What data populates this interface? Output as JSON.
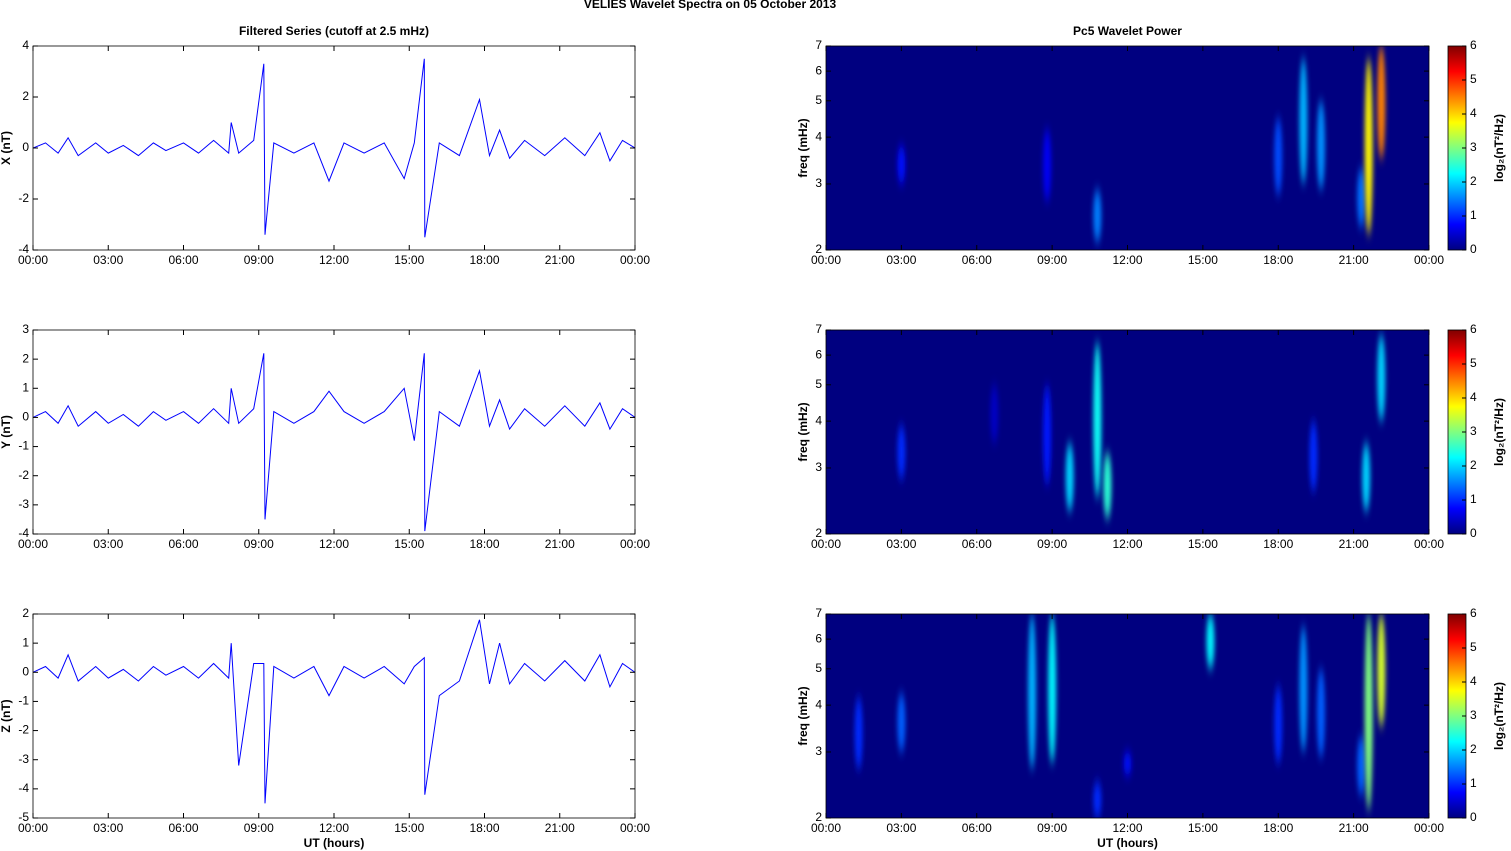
{
  "title": "VELIES Wavelet Spectra on 05 October   2013",
  "chart_data": [
    {
      "type": "line",
      "title": "Filtered Series (cutoff at 2.5 mHz)",
      "y_label": "X (nT)",
      "color": "#0000ff",
      "x": [
        0,
        0.5,
        1,
        1.4,
        1.8,
        2.5,
        3,
        3.6,
        4.2,
        4.8,
        5.3,
        6,
        6.6,
        7.2,
        7.8,
        7.9,
        8.2,
        8.8,
        9.2,
        9.25,
        9.6,
        10.4,
        11.2,
        11.8,
        12.4,
        13.2,
        14,
        14.8,
        15.2,
        15.6,
        15.62,
        16.2,
        17,
        17.8,
        18.2,
        18.6,
        19,
        19.6,
        20.4,
        21.2,
        22,
        22.6,
        23,
        23.5,
        24
      ],
      "values": [
        0,
        0.2,
        -0.2,
        0.4,
        -0.3,
        0.2,
        -0.2,
        0.1,
        -0.3,
        0.2,
        -0.1,
        0.2,
        -0.2,
        0.3,
        -0.2,
        1.0,
        -0.2,
        0.3,
        3.3,
        -3.4,
        0.2,
        -0.2,
        0.2,
        -1.3,
        0.2,
        -0.2,
        0.2,
        -1.2,
        0.2,
        3.5,
        -3.5,
        0.2,
        -0.3,
        1.9,
        -0.3,
        0.7,
        -0.4,
        0.3,
        -0.3,
        0.4,
        -0.3,
        0.6,
        -0.5,
        0.3,
        0
      ],
      "xlim": [
        0,
        24
      ],
      "xticks": [
        {
          "value": 0,
          "label": "00:00"
        },
        {
          "value": 3,
          "label": "03:00"
        },
        {
          "value": 6,
          "label": "06:00"
        },
        {
          "value": 9,
          "label": "09:00"
        },
        {
          "value": 12,
          "label": "12:00"
        },
        {
          "value": 15,
          "label": "15:00"
        },
        {
          "value": 18,
          "label": "18:00"
        },
        {
          "value": 21,
          "label": "21:00"
        },
        {
          "value": 24,
          "label": "00:00"
        }
      ],
      "ylim": [
        -4,
        4
      ],
      "yticks": [
        -4,
        -2,
        0,
        2,
        4
      ]
    },
    {
      "type": "wavelet",
      "title": "Pc5 Wavelet Power",
      "y_label": "freq (mHz)",
      "colorbar_label": "log₂(nT²/Hz)",
      "colormap": "jet",
      "log_y": true,
      "events": {
        "x": [
          3.0,
          8.8,
          10.8,
          18.0,
          19.0,
          19.7,
          21.3,
          21.6,
          22.1
        ],
        "f_low": [
          3.0,
          2.7,
          2.1,
          2.8,
          3.0,
          2.9,
          2.3,
          2.2,
          3.5
        ],
        "f_high": [
          3.8,
          4.2,
          2.9,
          4.5,
          6.5,
          5.0,
          3.3,
          6.5,
          7.0
        ],
        "power": [
          0.8,
          0.7,
          1.5,
          1.2,
          1.8,
          1.6,
          1.4,
          3.8,
          4.5
        ]
      },
      "xlim": [
        0,
        24
      ],
      "xticks": [
        {
          "value": 0,
          "label": "00:00"
        },
        {
          "value": 3,
          "label": "03:00"
        },
        {
          "value": 6,
          "label": "06:00"
        },
        {
          "value": 9,
          "label": "09:00"
        },
        {
          "value": 12,
          "label": "12:00"
        },
        {
          "value": 15,
          "label": "15:00"
        },
        {
          "value": 18,
          "label": "18:00"
        },
        {
          "value": 21,
          "label": "21:00"
        },
        {
          "value": 24,
          "label": "00:00"
        }
      ],
      "ylim": [
        2,
        7
      ],
      "yticks": [
        2,
        3,
        4,
        5,
        6,
        7
      ],
      "clim": [
        0,
        6
      ],
      "cticks": [
        0,
        1,
        2,
        3,
        4,
        5,
        6
      ]
    },
    {
      "type": "line",
      "y_label": "Y (nT)",
      "color": "#0000ff",
      "x": [
        0,
        0.5,
        1,
        1.4,
        1.8,
        2.5,
        3,
        3.6,
        4.2,
        4.8,
        5.3,
        6,
        6.6,
        7.2,
        7.8,
        7.9,
        8.2,
        8.8,
        9.2,
        9.25,
        9.6,
        10.4,
        11.2,
        11.8,
        12.4,
        13.2,
        14,
        14.8,
        15.2,
        15.6,
        15.62,
        16.2,
        17,
        17.8,
        18.2,
        18.6,
        19,
        19.6,
        20.4,
        21.2,
        22,
        22.6,
        23,
        23.5,
        24
      ],
      "values": [
        0,
        0.2,
        -0.2,
        0.4,
        -0.3,
        0.2,
        -0.2,
        0.1,
        -0.3,
        0.2,
        -0.1,
        0.2,
        -0.2,
        0.3,
        -0.2,
        1.0,
        -0.2,
        0.3,
        2.2,
        -3.5,
        0.2,
        -0.2,
        0.2,
        0.9,
        0.2,
        -0.2,
        0.2,
        1.0,
        -0.8,
        2.2,
        -3.9,
        0.2,
        -0.3,
        1.6,
        -0.3,
        0.6,
        -0.4,
        0.3,
        -0.3,
        0.4,
        -0.3,
        0.5,
        -0.4,
        0.3,
        0
      ],
      "xlim": [
        0,
        24
      ],
      "xticks": [
        {
          "value": 0,
          "label": "00:00"
        },
        {
          "value": 3,
          "label": "03:00"
        },
        {
          "value": 6,
          "label": "06:00"
        },
        {
          "value": 9,
          "label": "09:00"
        },
        {
          "value": 12,
          "label": "12:00"
        },
        {
          "value": 15,
          "label": "15:00"
        },
        {
          "value": 18,
          "label": "18:00"
        },
        {
          "value": 21,
          "label": "21:00"
        },
        {
          "value": 24,
          "label": "00:00"
        }
      ],
      "ylim": [
        -4,
        3
      ],
      "yticks": [
        -4,
        -3,
        -2,
        -1,
        0,
        1,
        2,
        3
      ]
    },
    {
      "type": "wavelet",
      "y_label": "freq (mHz)",
      "colorbar_label": "log₂(nT²/Hz)",
      "colormap": "jet",
      "log_y": true,
      "events": {
        "x": [
          3.0,
          6.7,
          8.8,
          9.7,
          10.8,
          11.2,
          19.4,
          21.5,
          22.1
        ],
        "f_low": [
          2.8,
          3.5,
          2.7,
          2.3,
          2.5,
          2.2,
          2.6,
          2.3,
          4.0
        ],
        "f_high": [
          3.9,
          5.0,
          5.0,
          3.5,
          6.5,
          3.3,
          4.0,
          3.5,
          6.8
        ],
        "power": [
          1.0,
          0.4,
          0.9,
          2.0,
          2.3,
          2.5,
          1.0,
          2.0,
          2.0
        ]
      },
      "xlim": [
        0,
        24
      ],
      "xticks": [
        {
          "value": 0,
          "label": "00:00"
        },
        {
          "value": 3,
          "label": "03:00"
        },
        {
          "value": 6,
          "label": "06:00"
        },
        {
          "value": 9,
          "label": "09:00"
        },
        {
          "value": 12,
          "label": "12:00"
        },
        {
          "value": 15,
          "label": "15:00"
        },
        {
          "value": 18,
          "label": "18:00"
        },
        {
          "value": 21,
          "label": "21:00"
        },
        {
          "value": 24,
          "label": "00:00"
        }
      ],
      "ylim": [
        2,
        7
      ],
      "yticks": [
        2,
        3,
        4,
        5,
        6,
        7
      ],
      "clim": [
        0,
        6
      ],
      "cticks": [
        0,
        1,
        2,
        3,
        4,
        5,
        6
      ]
    },
    {
      "type": "line",
      "y_label": "Z (nT)",
      "x_label": "UT (hours)",
      "color": "#0000ff",
      "x": [
        0,
        0.5,
        1,
        1.4,
        1.8,
        2.5,
        3,
        3.6,
        4.2,
        4.8,
        5.3,
        6,
        6.6,
        7.2,
        7.8,
        7.9,
        8.2,
        8.8,
        9.2,
        9.25,
        9.6,
        10.4,
        11.2,
        11.8,
        12.4,
        13.2,
        14,
        14.8,
        15.2,
        15.6,
        15.62,
        16.2,
        17,
        17.8,
        18.2,
        18.6,
        19,
        19.6,
        20.4,
        21.2,
        22,
        22.6,
        23,
        23.5,
        24
      ],
      "values": [
        0,
        0.2,
        -0.2,
        0.6,
        -0.3,
        0.2,
        -0.2,
        0.1,
        -0.3,
        0.2,
        -0.1,
        0.2,
        -0.2,
        0.3,
        -0.2,
        1.0,
        -3.2,
        0.3,
        0.3,
        -4.5,
        0.2,
        -0.2,
        0.2,
        -0.8,
        0.2,
        -0.2,
        0.2,
        -0.4,
        0.2,
        0.5,
        -4.2,
        -0.8,
        -0.3,
        1.8,
        -0.4,
        1.0,
        -0.4,
        0.3,
        -0.3,
        0.4,
        -0.3,
        0.6,
        -0.5,
        0.3,
        0
      ],
      "xlim": [
        0,
        24
      ],
      "xticks": [
        {
          "value": 0,
          "label": "00:00"
        },
        {
          "value": 3,
          "label": "03:00"
        },
        {
          "value": 6,
          "label": "06:00"
        },
        {
          "value": 9,
          "label": "09:00"
        },
        {
          "value": 12,
          "label": "12:00"
        },
        {
          "value": 15,
          "label": "15:00"
        },
        {
          "value": 18,
          "label": "18:00"
        },
        {
          "value": 21,
          "label": "21:00"
        },
        {
          "value": 24,
          "label": "00:00"
        }
      ],
      "ylim": [
        -5,
        2
      ],
      "yticks": [
        -5,
        -4,
        -3,
        -2,
        -1,
        0,
        1,
        2
      ]
    },
    {
      "type": "wavelet",
      "y_label": "freq (mHz)",
      "x_label": "UT (hours)",
      "colorbar_label": "log₂(nT²/Hz)",
      "colormap": "jet",
      "log_y": true,
      "events": {
        "x": [
          1.3,
          3.0,
          8.2,
          9.0,
          10.8,
          12.0,
          15.3,
          18.0,
          19.0,
          19.7,
          21.3,
          21.6,
          22.1
        ],
        "f_low": [
          2.7,
          3.0,
          2.7,
          2.8,
          2.0,
          2.6,
          5.0,
          2.8,
          3.0,
          2.9,
          2.3,
          2.1,
          3.5
        ],
        "f_high": [
          4.2,
          4.3,
          7.0,
          7.0,
          2.5,
          3.0,
          7.0,
          4.5,
          6.5,
          5.0,
          3.3,
          7.0,
          7.0
        ],
        "power": [
          1.0,
          1.3,
          1.8,
          2.2,
          1.0,
          0.8,
          2.2,
          1.0,
          1.6,
          1.3,
          1.3,
          3.0,
          3.5
        ]
      },
      "xlim": [
        0,
        24
      ],
      "xticks": [
        {
          "value": 0,
          "label": "00:00"
        },
        {
          "value": 3,
          "label": "03:00"
        },
        {
          "value": 6,
          "label": "06:00"
        },
        {
          "value": 9,
          "label": "09:00"
        },
        {
          "value": 12,
          "label": "12:00"
        },
        {
          "value": 15,
          "label": "15:00"
        },
        {
          "value": 18,
          "label": "18:00"
        },
        {
          "value": 21,
          "label": "21:00"
        },
        {
          "value": 24,
          "label": "00:00"
        }
      ],
      "ylim": [
        2,
        7
      ],
      "yticks": [
        2,
        3,
        4,
        5,
        6,
        7
      ],
      "clim": [
        0,
        6
      ],
      "cticks": [
        0,
        1,
        2,
        3,
        4,
        5,
        6
      ]
    }
  ]
}
